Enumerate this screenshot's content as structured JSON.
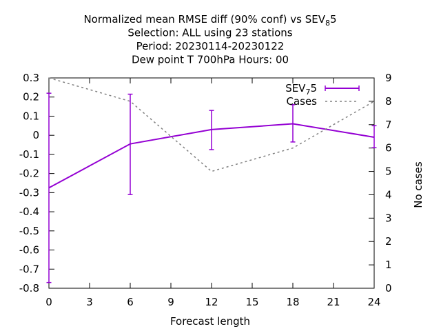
{
  "chart_data": {
    "type": "line",
    "title_lines": [
      "Normalized mean RMSE diff (90% conf) vs SEV",
      "Selection: ALL using    23 stations",
      "Period: 20230114-20230122",
      "Dew point T 700hPa   Hours:  00"
    ],
    "title_suffix": {
      "sub": "8",
      "tail": "5"
    },
    "xlabel": "Forecast length",
    "ylabel_right": "No cases",
    "xlim": [
      0,
      24
    ],
    "ylim": [
      -0.8,
      0.3
    ],
    "y2lim": [
      0,
      9
    ],
    "xticks": [
      "0",
      "3",
      "6",
      "9",
      "12",
      "15",
      "18",
      "21",
      "24"
    ],
    "yticks": [
      "0.3",
      "0.2",
      "0.1",
      "0",
      "-0.1",
      "-0.2",
      "-0.3",
      "-0.4",
      "-0.5",
      "-0.6",
      "-0.7",
      "-0.8"
    ],
    "y2ticks": [
      "9",
      "8",
      "7",
      "6",
      "5",
      "4",
      "3",
      "2",
      "1",
      "0"
    ],
    "legend_position": "top-right",
    "series": [
      {
        "name": "SEV",
        "name_sub": "7",
        "name_tail": "5",
        "color": "#9400d3",
        "x": [
          0,
          6,
          12,
          18,
          24
        ],
        "y": [
          -0.275,
          -0.045,
          0.03,
          0.06,
          -0.01
        ],
        "err_low": [
          -0.77,
          -0.31,
          -0.075,
          -0.035,
          -0.065
        ],
        "err_high": [
          0.22,
          0.215,
          0.13,
          0.16,
          0.05
        ]
      },
      {
        "name": "Cases",
        "color": "#808080",
        "axis": "y2",
        "x": [
          0,
          6,
          12,
          18,
          24
        ],
        "y": [
          9,
          8,
          5,
          6,
          8
        ]
      }
    ]
  }
}
